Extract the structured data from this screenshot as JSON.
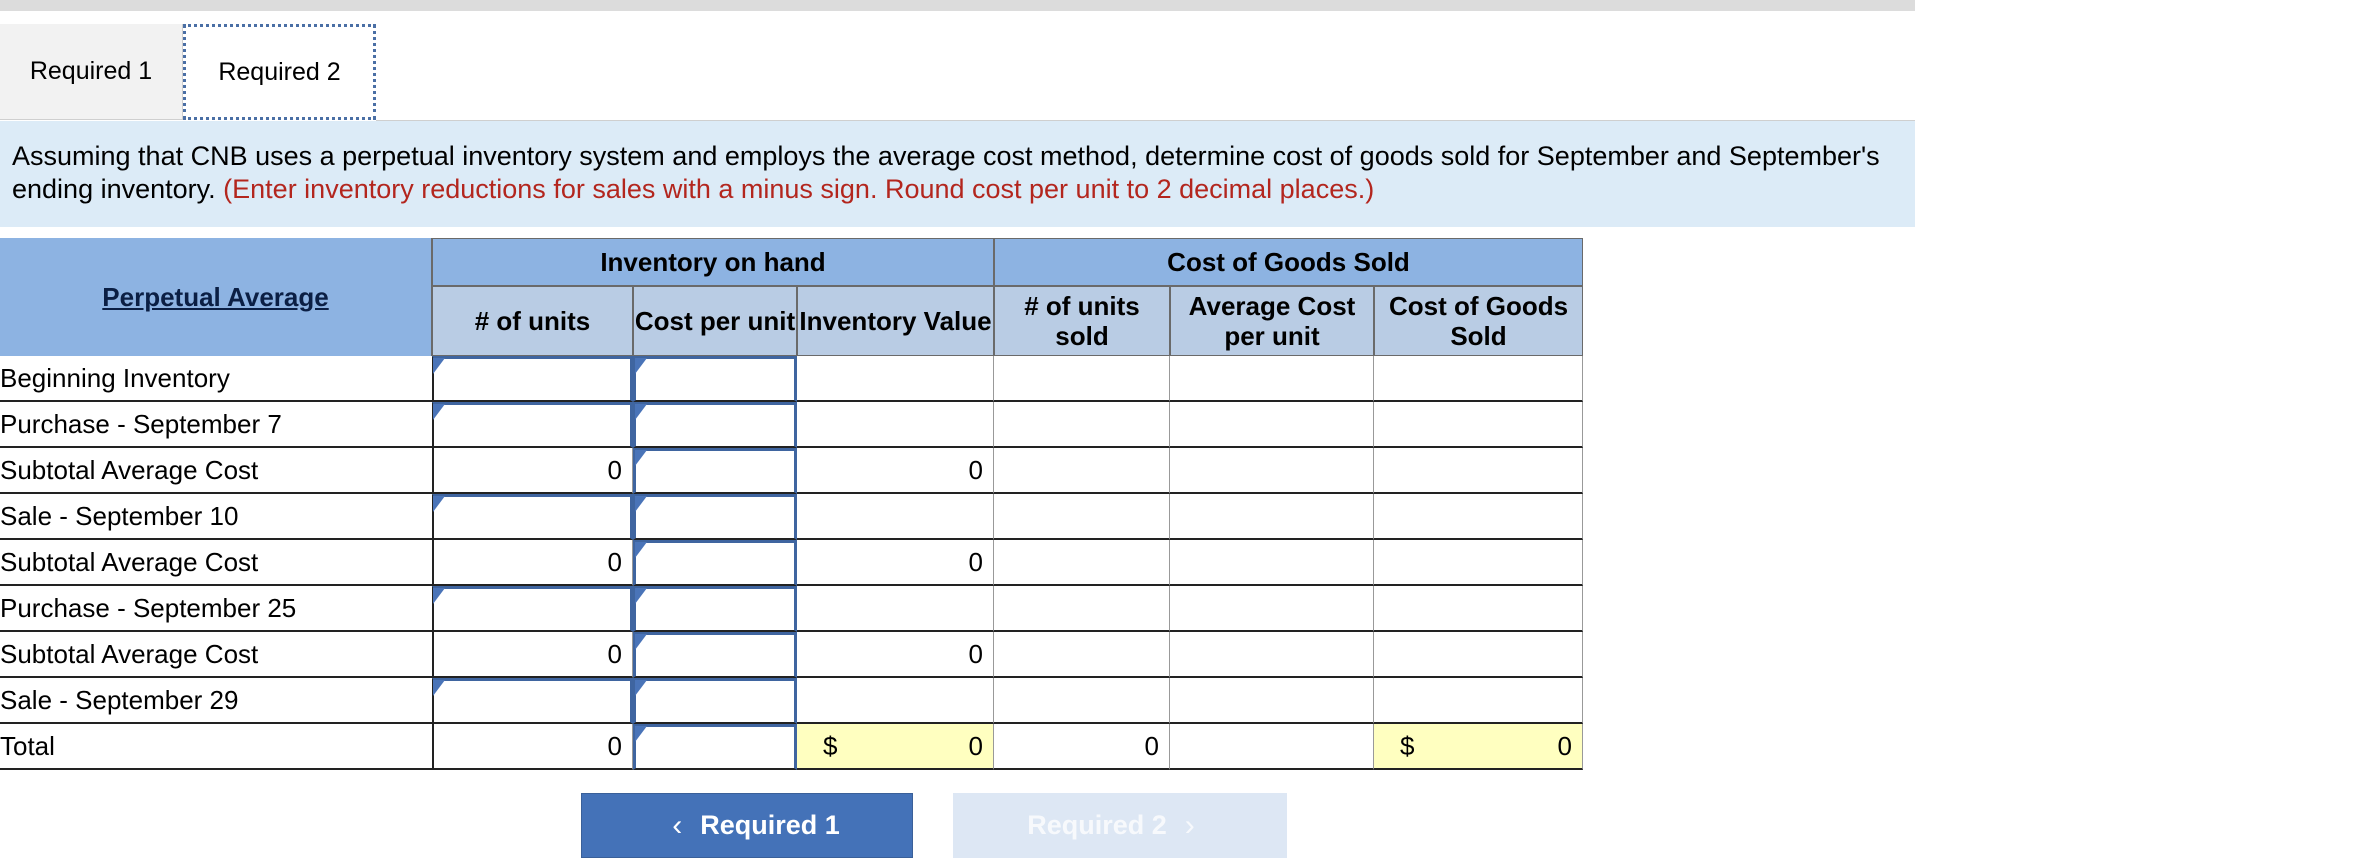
{
  "tabs": [
    {
      "label": "Required 1"
    },
    {
      "label": "Required 2"
    }
  ],
  "instructions": {
    "text": "Assuming that CNB uses a perpetual inventory system and employs the average cost method, determine cost of goods sold for September and September's ending inventory.",
    "note": "(Enter inventory reductions for sales with a minus sign. Round cost per unit to 2 decimal places.)"
  },
  "table": {
    "main_header": "Perpetual Average",
    "group_inventory": "Inventory on hand",
    "group_cogs": "Cost of Goods Sold",
    "columns": [
      "# of units",
      "Cost per unit",
      "Inventory Value",
      "# of units sold",
      "Average Cost per unit",
      "Cost of Goods Sold"
    ],
    "rows": [
      {
        "label": "Beginning Inventory",
        "units": "",
        "cost": "",
        "value": "",
        "sold": "",
        "avg": "",
        "cogs": ""
      },
      {
        "label": "Purchase - September 7",
        "units": "",
        "cost": "",
        "value": "",
        "sold": "",
        "avg": "",
        "cogs": ""
      },
      {
        "label": "Subtotal Average Cost",
        "units": "0",
        "cost": "",
        "value": "0",
        "sold": "",
        "avg": "",
        "cogs": ""
      },
      {
        "label": "Sale - September 10",
        "units": "",
        "cost": "",
        "value": "",
        "sold": "",
        "avg": "",
        "cogs": ""
      },
      {
        "label": "Subtotal Average Cost",
        "units": "0",
        "cost": "",
        "value": "0",
        "sold": "",
        "avg": "",
        "cogs": ""
      },
      {
        "label": "Purchase - September 25",
        "units": "",
        "cost": "",
        "value": "",
        "sold": "",
        "avg": "",
        "cogs": ""
      },
      {
        "label": "Subtotal Average Cost",
        "units": "0",
        "cost": "",
        "value": "0",
        "sold": "",
        "avg": "",
        "cogs": ""
      },
      {
        "label": "Sale - September 29",
        "units": "",
        "cost": "",
        "value": "",
        "sold": "",
        "avg": "",
        "cogs": ""
      },
      {
        "label": "Total",
        "units": "0",
        "cost": "",
        "value": "0",
        "sold": "0",
        "avg": "",
        "cogs": "0"
      }
    ],
    "currency_symbol": "$"
  },
  "buttons": {
    "prev_label": "Required 1",
    "next_label": "Required 2",
    "prev_icon": "chevron-left-icon",
    "next_icon": "chevron-right-icon"
  },
  "colors": {
    "banner_bg": "#dcebf7",
    "header_bg": "#8db3e2",
    "subheader_bg": "#b9cce4",
    "note_red": "#b3261e",
    "highlight": "#ffffc0",
    "button_blue": "#4472b8",
    "button_disabled": "#dde7f4"
  }
}
